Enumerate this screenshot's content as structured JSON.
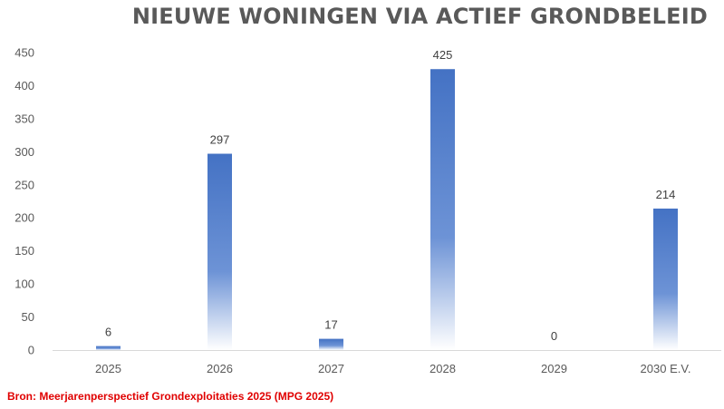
{
  "chart_data": {
    "type": "bar",
    "title": "NIEUWE WONINGEN VIA ACTIEF GRONDBELEID",
    "categories": [
      "2025",
      "2026",
      "2027",
      "2028",
      "2029",
      "2030 E.V."
    ],
    "values": [
      6,
      297,
      17,
      425,
      0,
      214
    ],
    "data_labels": [
      "6",
      "297",
      "17",
      "425",
      "0",
      "214"
    ],
    "yticks": [
      0,
      50,
      100,
      150,
      200,
      250,
      300,
      350,
      400,
      450
    ],
    "ylim": [
      0,
      450
    ],
    "xlabel": "",
    "ylabel": "",
    "grid": false,
    "legend": "none",
    "bar_color": "#4472c4",
    "bar_fill": "gradient fading to white toward the baseline"
  },
  "source_note": "Bron: Meerjarenperspectief Grondexploitaties 2025 (MPG 2025)",
  "colors": {
    "title": "#595959",
    "source_note": "#e00000",
    "axis_line": "#d9d9d9"
  }
}
